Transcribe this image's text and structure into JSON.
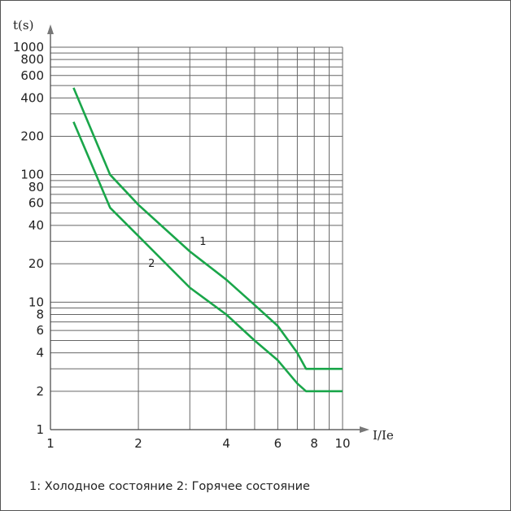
{
  "chart_data": {
    "type": "line",
    "title": "",
    "xlabel": "I/Ie",
    "ylabel": "t(s)",
    "x_scale": "log",
    "y_scale": "log",
    "xlim": [
      1,
      10
    ],
    "ylim": [
      1,
      1000
    ],
    "x_tick_labels": [
      "1",
      "2",
      "4",
      "6",
      "8",
      "10"
    ],
    "y_tick_labels": [
      "1",
      "2",
      "4",
      "6",
      "8",
      "10",
      "20",
      "40",
      "60",
      "80",
      "100",
      "200",
      "400",
      "600",
      "800",
      "1000"
    ],
    "grid": true,
    "legend": "caption below chart",
    "series": [
      {
        "name": "1",
        "color": "#1aa64a",
        "x": [
          1.2,
          1.6,
          2.0,
          3.0,
          4.0,
          5.0,
          6.0,
          7.0,
          7.5,
          8.0,
          10.0
        ],
        "y": [
          480,
          100,
          58,
          25,
          15,
          9.5,
          6.5,
          4,
          3,
          3,
          3
        ]
      },
      {
        "name": "2",
        "color": "#1aa64a",
        "x": [
          1.2,
          1.6,
          2.0,
          3.0,
          4.0,
          5.0,
          6.0,
          7.0,
          7.5,
          8.0,
          10.0
        ],
        "y": [
          260,
          55,
          33,
          13,
          8,
          5,
          3.5,
          2.3,
          2,
          2,
          2
        ]
      }
    ]
  },
  "caption": "1: Холодное состояние 2: Горячее состояние"
}
